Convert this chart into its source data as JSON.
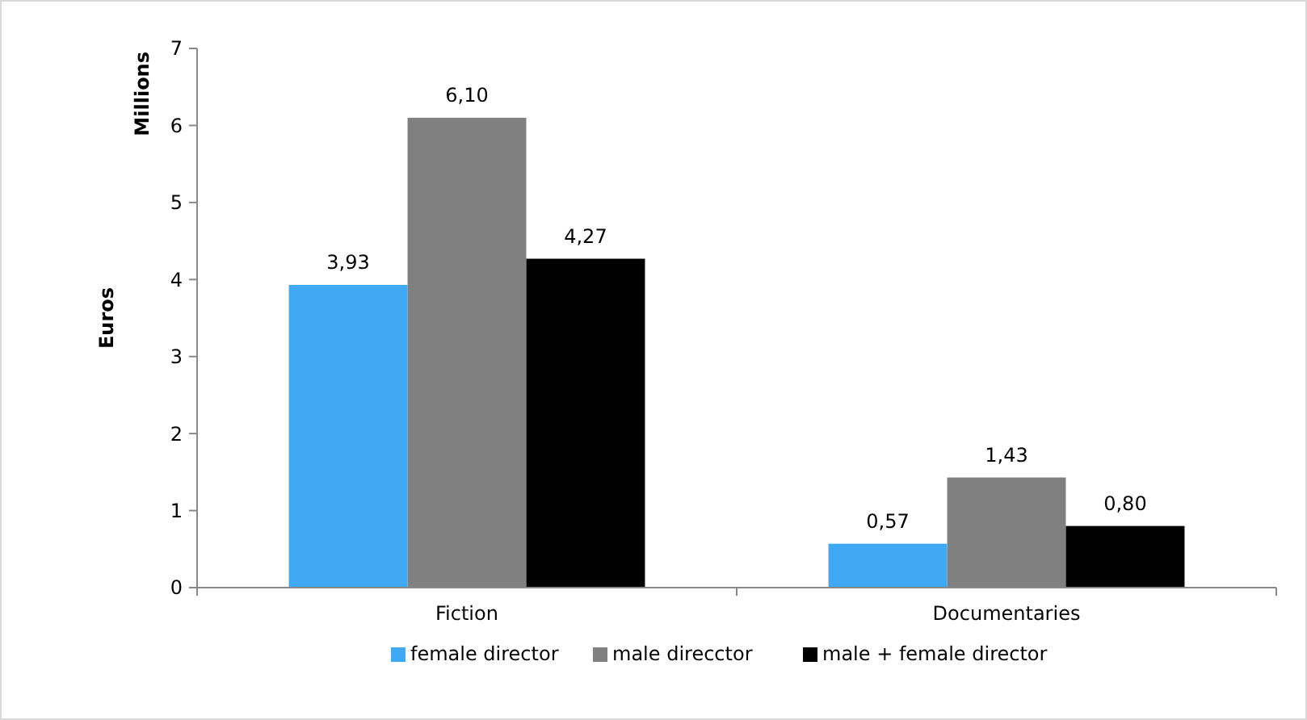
{
  "chart_data": {
    "type": "bar",
    "ylabel": "Euros",
    "annotations": [
      "Millions"
    ],
    "categories": [
      "Fiction",
      "Documentaries"
    ],
    "series": [
      {
        "name": "female director",
        "color": "#3fa9f5",
        "values": [
          3.93,
          0.57
        ],
        "value_labels": [
          "3,93",
          "0,57"
        ]
      },
      {
        "name": "male direcctor",
        "color": "#808080",
        "values": [
          6.1,
          1.43
        ],
        "value_labels": [
          "6,10",
          "1,43"
        ]
      },
      {
        "name": "male + female director",
        "color": "#000000",
        "values": [
          4.27,
          0.8
        ],
        "value_labels": [
          "4,27",
          "0,80"
        ]
      }
    ],
    "ylim": [
      0,
      7
    ],
    "yticks": [
      0,
      1,
      2,
      3,
      4,
      5,
      6,
      7
    ],
    "grid": false,
    "legend": "bottom"
  }
}
